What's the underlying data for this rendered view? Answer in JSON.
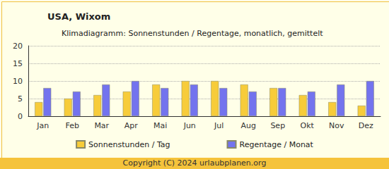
{
  "chart_data": {
    "type": "bar",
    "title": "USA, Wixom",
    "subtitle": "Klimadiagramm: Sonnenstunden / Regentage, monatlich, gemittelt",
    "categories": [
      "Jan",
      "Feb",
      "Mar",
      "Apr",
      "Mai",
      "Jun",
      "Jul",
      "Aug",
      "Sep",
      "Okt",
      "Nov",
      "Dez"
    ],
    "series": [
      {
        "name": "Sonnenstunden / Tag",
        "color": "#f7cc3a",
        "values": [
          4,
          5,
          6,
          7,
          9,
          10,
          10,
          9,
          8,
          6,
          4,
          3
        ]
      },
      {
        "name": "Regentage / Monat",
        "color": "#7373ee",
        "values": [
          8,
          7,
          9,
          10,
          8,
          9,
          8,
          7,
          8,
          7,
          9,
          10
        ]
      }
    ],
    "ylim": [
      0,
      20
    ],
    "yticks": [
      0,
      5,
      10,
      15,
      20
    ],
    "grid": true,
    "legend": "bottom",
    "annotations": [
      "Copyright (C) 2024 urlaubplanen.org"
    ]
  }
}
